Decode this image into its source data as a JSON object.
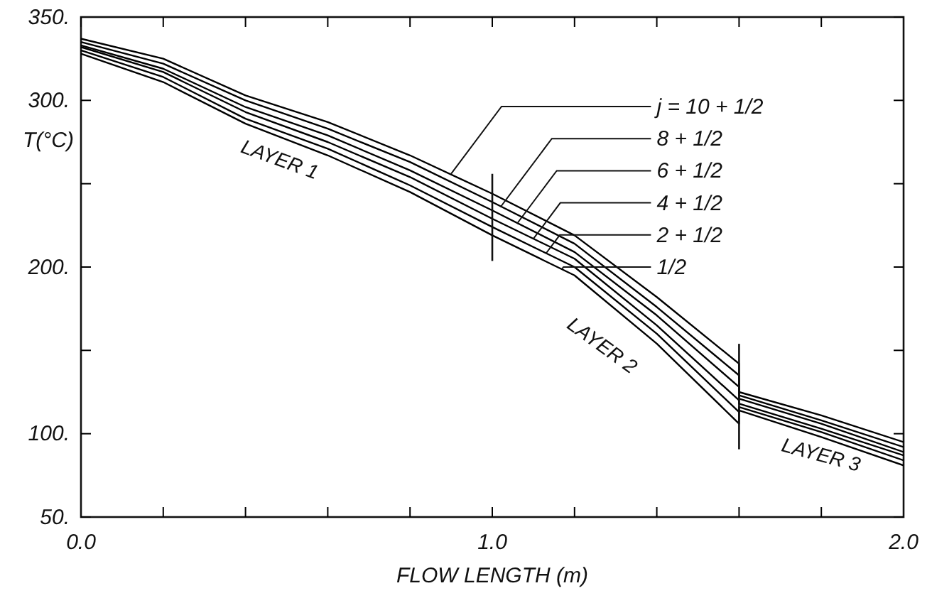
{
  "chart_data": {
    "type": "line",
    "xlabel": "FLOW LENGTH (m)",
    "ylabel": "T(°C)",
    "x": [
      0,
      0.2,
      0.4,
      0.6,
      0.8,
      1.0,
      1.2,
      1.4,
      1.6,
      1.6,
      1.8,
      2.0
    ],
    "series": [
      {
        "color": "#000000",
        "values": [
          337,
          325,
          303,
          287,
          267,
          244,
          219,
          182,
          142,
          125,
          111,
          95
        ]
      },
      {
        "color": "#000000",
        "values": [
          335,
          322,
          300,
          283,
          263,
          239,
          214,
          176,
          135,
          123,
          108,
          92
        ]
      },
      {
        "color": "#000000",
        "values": [
          333,
          319,
          296,
          279,
          258,
          234,
          209,
          171,
          128,
          121,
          106,
          89
        ]
      },
      {
        "color": "#000000",
        "values": [
          332,
          317,
          293,
          275,
          254,
          229,
          205,
          165,
          120,
          118,
          103,
          87
        ]
      },
      {
        "color": "#000000",
        "values": [
          330,
          314,
          289,
          271,
          249,
          224,
          200,
          160,
          113,
          116,
          101,
          84
        ]
      },
      {
        "color": "#000000",
        "values": [
          328,
          311,
          286,
          267,
          245,
          219,
          195,
          154,
          106,
          114,
          98,
          81
        ]
      }
    ],
    "xlim": [
      0,
      2.0
    ],
    "ylim": [
      50,
      350
    ],
    "xticks": [
      {
        "value": 0,
        "label": "0.0"
      },
      {
        "value": 0.2,
        "label": null
      },
      {
        "value": 0.4,
        "label": null
      },
      {
        "value": 0.6,
        "label": null
      },
      {
        "value": 0.8,
        "label": null
      },
      {
        "value": 1.0,
        "label": "1.0"
      },
      {
        "value": 1.2,
        "label": null
      },
      {
        "value": 1.4,
        "label": null
      },
      {
        "value": 1.6,
        "label": null
      },
      {
        "value": 1.8,
        "label": null
      },
      {
        "value": 2.0,
        "label": "2.0"
      }
    ],
    "yticks": [
      {
        "value": 50,
        "label": "50."
      },
      {
        "value": 100,
        "label": "100."
      },
      {
        "value": 150,
        "label": null
      },
      {
        "value": 200,
        "label": "200."
      },
      {
        "value": 250,
        "label": null
      },
      {
        "value": 300,
        "label": "300."
      },
      {
        "value": 350,
        "label": "350."
      }
    ],
    "ref_lines": [
      {
        "axis": "x",
        "value": 1.0
      },
      {
        "axis": "x",
        "value": 1.6
      }
    ],
    "annotations": [
      {
        "text": "j = 10 + 1/2",
        "x": 0.9,
        "y": 256
      },
      {
        "text": "8 + 1/2",
        "x": 1.02,
        "y": 236
      },
      {
        "text": "6 + 1/2",
        "x": 1.06,
        "y": 226
      },
      {
        "text": "4 + 1/2",
        "x": 1.1,
        "y": 217
      },
      {
        "text": "2 + 1/2",
        "x": 1.13,
        "y": 208
      },
      {
        "text": "1/2",
        "x": 1.17,
        "y": 199
      },
      "LAYER 1",
      "LAYER 2",
      "LAYER 3"
    ],
    "grid": false,
    "legend": false,
    "marker": "none",
    "line_style": "solid"
  }
}
